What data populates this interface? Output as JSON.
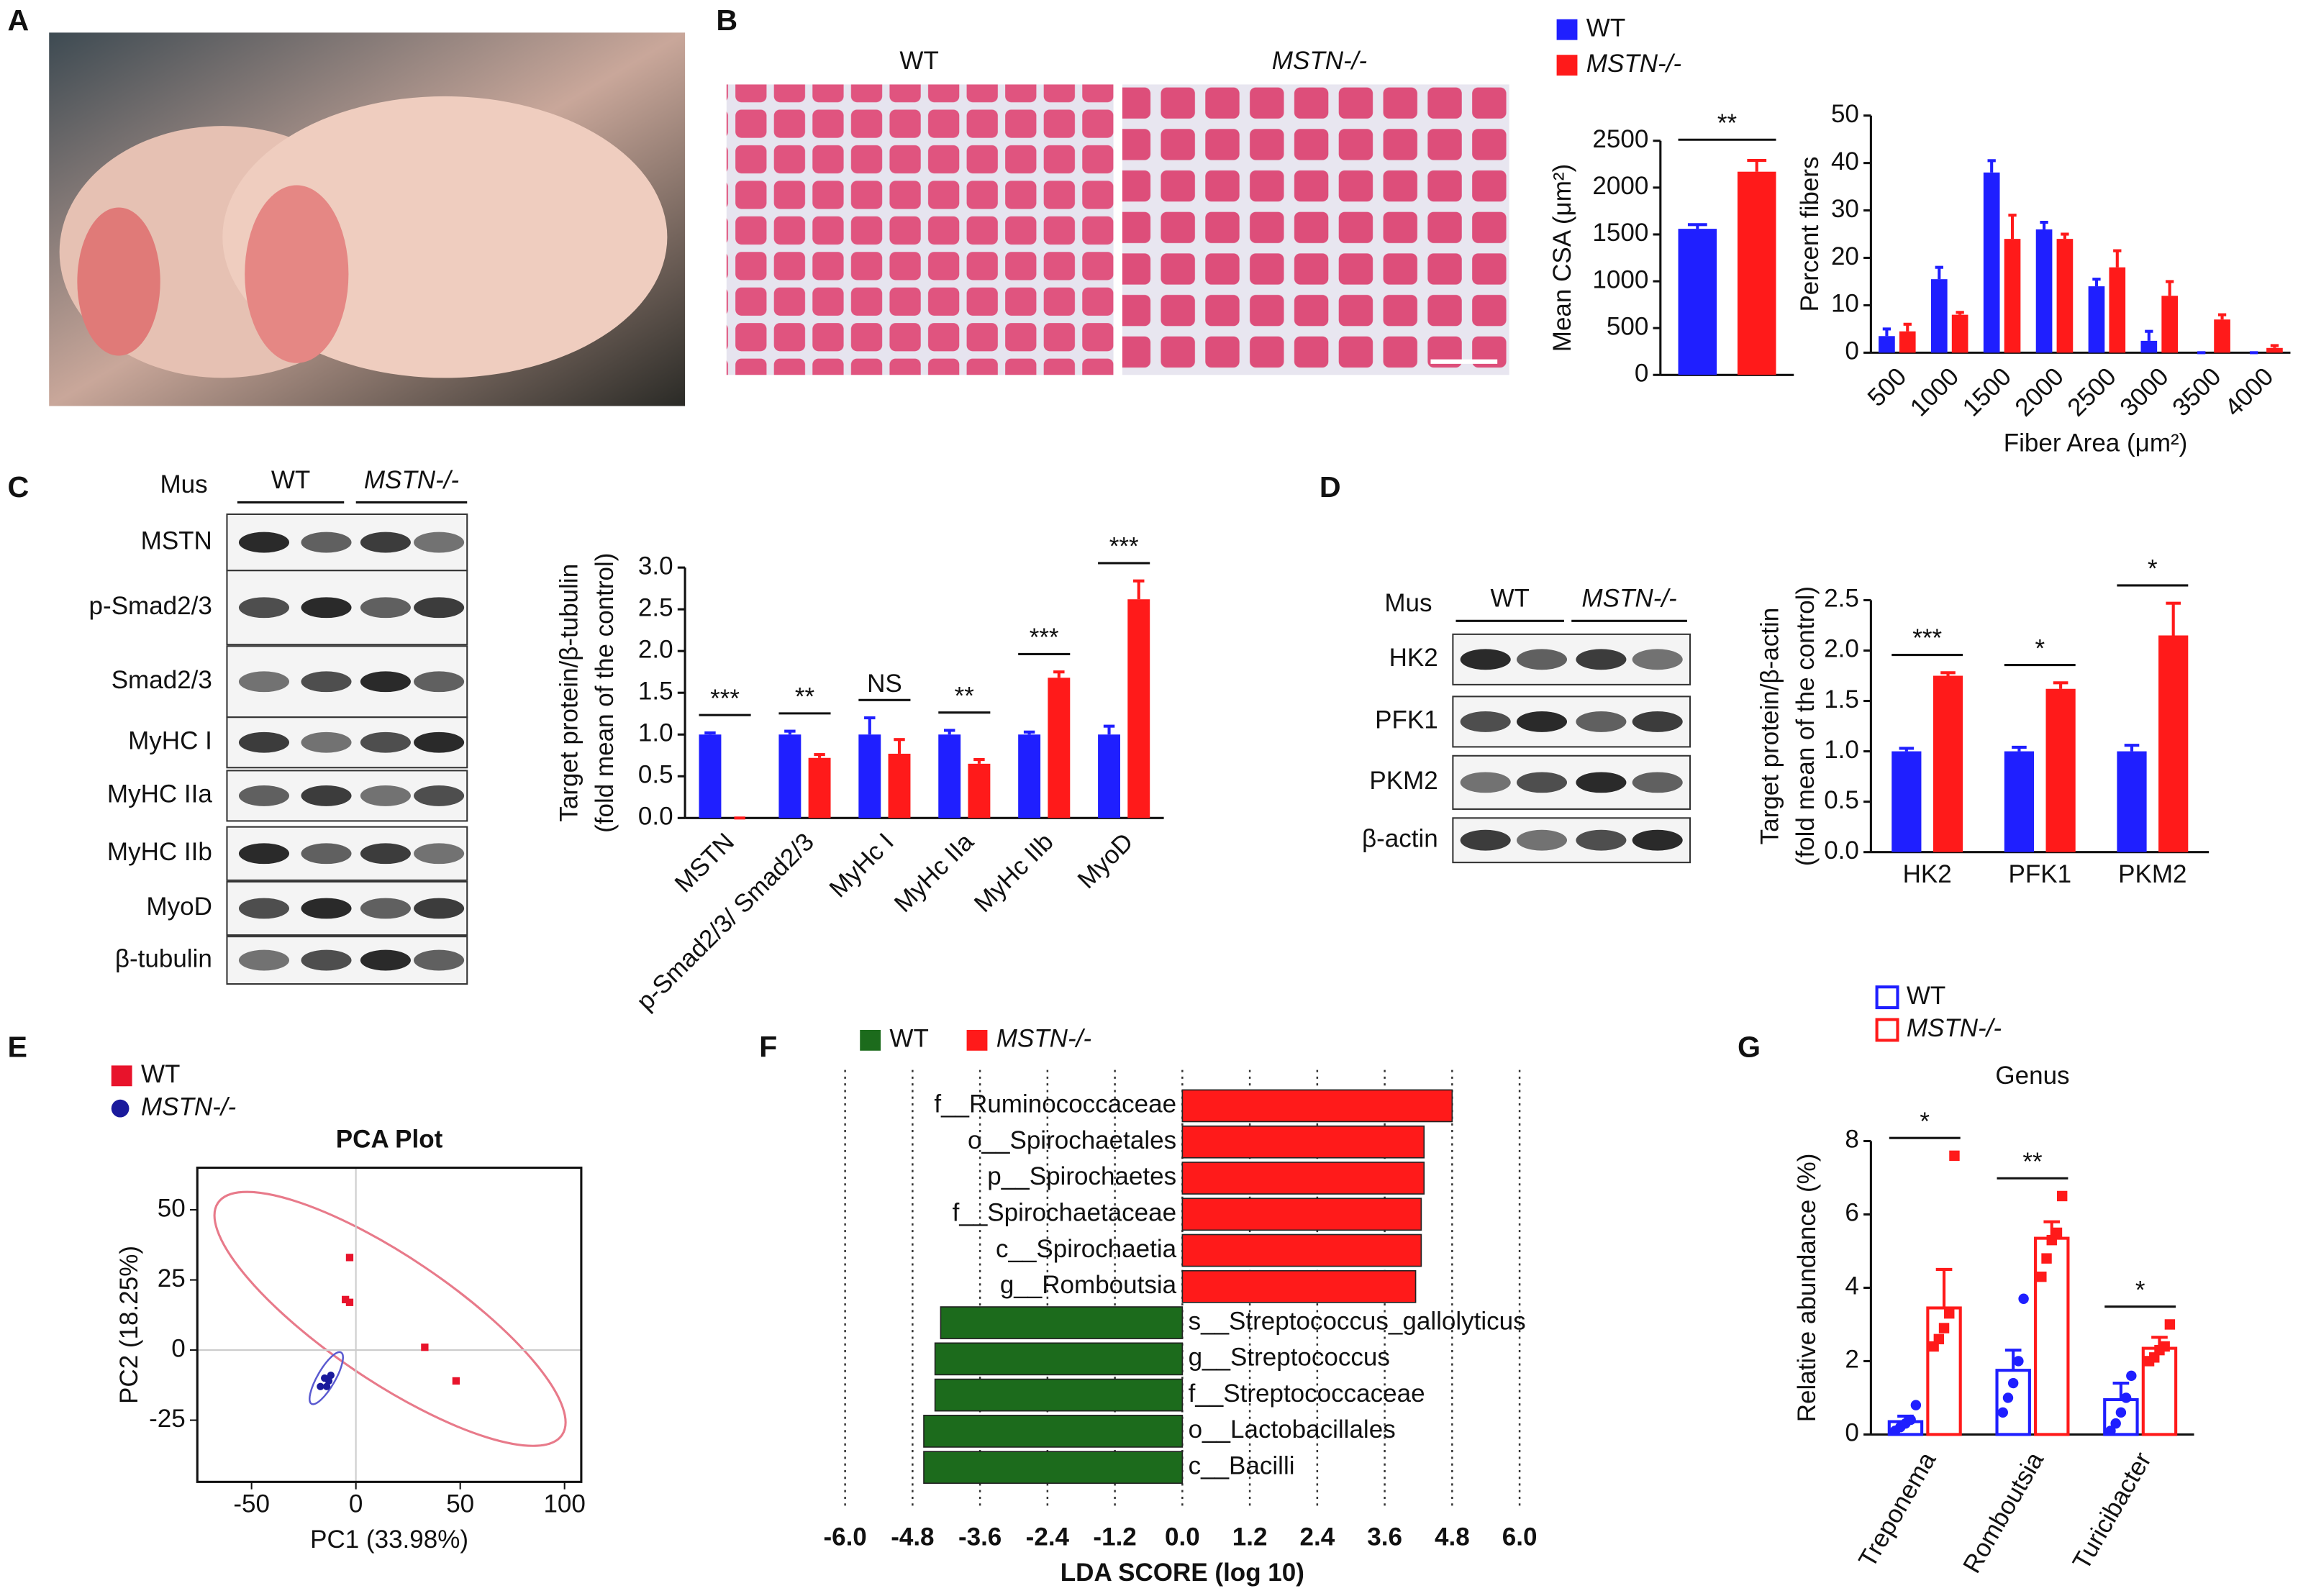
{
  "panel_labels": [
    "A",
    "B",
    "C",
    "D",
    "E",
    "F",
    "G"
  ],
  "histology": {
    "titles": [
      "WT",
      "MSTN-/-"
    ]
  },
  "blot_c": {
    "header": "Mus",
    "groups": [
      "WT",
      "MSTN-/-"
    ],
    "rows": [
      "MSTN",
      "p-Smad2/3",
      "Smad2/3",
      "MyHC I",
      "MyHC IIa",
      "MyHC IIb",
      "MyoD",
      "β-tubulin"
    ]
  },
  "blot_d": {
    "header": "Mus",
    "groups": [
      "WT",
      "MSTN-/-"
    ],
    "rows": [
      "HK2",
      "PFK1",
      "PKM2",
      "β-actin"
    ]
  },
  "chart_data": [
    {
      "type": "bar",
      "ylabel": "Mean CSA (μm²)",
      "legend": "above",
      "categories": [
        null
      ],
      "series": [
        {
          "name": "WT",
          "color": "#1f1fff",
          "values": [
            1560
          ],
          "errors": [
            45
          ]
        },
        {
          "name": "MSTN-/-",
          "color": "#ff1a1a",
          "values": [
            2170
          ],
          "errors": [
            120
          ]
        }
      ],
      "significance": [
        "**"
      ],
      "ylim": [
        0,
        2500
      ],
      "yticks": [
        0,
        500,
        1000,
        1500,
        2000,
        2500
      ]
    },
    {
      "type": "bar",
      "ylabel": "Percent fibers",
      "xlabel": "Fiber Area (μm²)",
      "categories": [
        "500",
        "1000",
        "1500",
        "2000",
        "2500",
        "3000",
        "3500",
        "4000"
      ],
      "series": [
        {
          "name": "WT",
          "color": "#1f1fff",
          "values": [
            3.5,
            15.5,
            38,
            26,
            14,
            2.5,
            0,
            0
          ],
          "errors": [
            1.5,
            2.5,
            2.5,
            1.5,
            1.5,
            2,
            0,
            0
          ]
        },
        {
          "name": "MSTN-/-",
          "color": "#ff1a1a",
          "values": [
            4.5,
            8,
            24,
            24,
            18,
            12,
            7,
            1
          ],
          "errors": [
            1.5,
            0.5,
            5,
            1,
            3.5,
            3,
            1,
            0.5
          ]
        }
      ],
      "ylim": [
        0,
        50
      ],
      "yticks": [
        0,
        10,
        20,
        30,
        40,
        50
      ]
    },
    {
      "type": "bar",
      "ylabel": [
        "Target protein/β-tubulin",
        "(fold mean of the control)"
      ],
      "categories": [
        "MSTN",
        "p-Smad2/3/ Smad2/3",
        "MyHc I",
        "MyHc IIa",
        "MyHc IIb",
        "MyoD"
      ],
      "series": [
        {
          "name": "WT",
          "color": "#1f1fff",
          "values": [
            1,
            1,
            1,
            1,
            1,
            1
          ],
          "errors": [
            0.02,
            0.04,
            0.2,
            0.05,
            0.03,
            0.1
          ]
        },
        {
          "name": "MSTN-/-",
          "color": "#ff1a1a",
          "values": [
            0,
            0.72,
            0.77,
            0.65,
            1.68,
            2.62
          ],
          "errors": [
            0,
            0.04,
            0.17,
            0.05,
            0.07,
            0.22
          ]
        }
      ],
      "significance": [
        "***",
        "**",
        "NS",
        "**",
        "***",
        "***"
      ],
      "ylim": [
        0,
        3
      ],
      "yticks": [
        {
          "value": 0,
          "label": "0.0"
        },
        {
          "value": 0.5,
          "label": "0.5"
        },
        {
          "value": 1,
          "label": "1.0"
        },
        {
          "value": 1.5,
          "label": "1.5"
        },
        {
          "value": 2,
          "label": "2.0"
        },
        {
          "value": 2.5,
          "label": "2.5"
        },
        {
          "value": 3,
          "label": "3.0"
        }
      ]
    },
    {
      "type": "bar",
      "ylabel": [
        "Target protein/β-actin",
        "(fold mean of the control)"
      ],
      "categories": [
        "HK2",
        "PFK1",
        "PKM2"
      ],
      "series": [
        {
          "name": "WT",
          "color": "#1f1fff",
          "values": [
            1,
            1,
            1
          ],
          "errors": [
            0.03,
            0.04,
            0.06
          ]
        },
        {
          "name": "MSTN-/-",
          "color": "#ff1a1a",
          "values": [
            1.75,
            1.62,
            2.15
          ],
          "errors": [
            0.03,
            0.06,
            0.32
          ]
        }
      ],
      "significance": [
        "***",
        "*",
        "*"
      ],
      "ylim": [
        0,
        2.5
      ],
      "yticks": [
        {
          "value": 0,
          "label": "0.0"
        },
        {
          "value": 0.5,
          "label": "0.5"
        },
        {
          "value": 1,
          "label": "1.0"
        },
        {
          "value": 1.5,
          "label": "1.5"
        },
        {
          "value": 2,
          "label": "2.0"
        },
        {
          "value": 2.5,
          "label": "2.5"
        }
      ]
    },
    {
      "type": "scatter",
      "title": "PCA Plot",
      "xlabel": "PC1 (33.98%)",
      "ylabel": "PC2 (18.25%)",
      "legend": "upper left",
      "series": [
        {
          "name": "WT",
          "color": "#e8132b",
          "marker": "square",
          "x": [
            -3,
            -5,
            -3,
            33,
            48
          ],
          "y": [
            33,
            18,
            17,
            1,
            -11
          ]
        },
        {
          "name": "MSTN-/-",
          "color": "#1a1a9c",
          "marker": "circle",
          "x": [
            -15,
            -13,
            -12,
            -17,
            -14
          ],
          "y": [
            -10,
            -11,
            -9,
            -13,
            -13
          ]
        }
      ],
      "xlim": [
        -76,
        108
      ],
      "ylim": [
        -47,
        65
      ],
      "xticks": [
        -50,
        0,
        50,
        100
      ],
      "yticks": [
        -25,
        0,
        25,
        50
      ]
    },
    {
      "type": "barh",
      "xlabel": "LDA SCORE (log 10)",
      "legend": "above",
      "grid": true,
      "categories": [
        "f__Ruminococcaceae",
        "o__Spirochaetales",
        "p__Spirochaetes",
        "f__Spirochaetaceae",
        "c__Spirochaetia",
        "g__Romboutsia",
        "s__Streptococcus_gallolyticus",
        "g__Streptococcus",
        "f__Streptococcaceae",
        "o__Lactobacillales",
        "c__Bacilli"
      ],
      "series": [
        {
          "name": "WT",
          "color": "#1c6b1c",
          "values": [
            null,
            null,
            null,
            null,
            null,
            null,
            -4.3,
            -4.4,
            -4.4,
            -4.6,
            -4.6
          ]
        },
        {
          "name": "MSTN-/-",
          "color": "#ff1a1a",
          "values": [
            4.8,
            4.3,
            4.3,
            4.25,
            4.25,
            4.15,
            null,
            null,
            null,
            null,
            null
          ]
        }
      ],
      "xlim": [
        -6,
        6
      ],
      "xticks": [
        {
          "value": -6,
          "label": "-6.0"
        },
        {
          "value": -4.8,
          "label": "-4.8"
        },
        {
          "value": -3.6,
          "label": "-3.6"
        },
        {
          "value": -2.4,
          "label": "-2.4"
        },
        {
          "value": -1.2,
          "label": "-1.2"
        },
        {
          "value": 0,
          "label": "0.0"
        },
        {
          "value": 1.2,
          "label": "1.2"
        },
        {
          "value": 2.4,
          "label": "2.4"
        },
        {
          "value": 3.6,
          "label": "3.6"
        },
        {
          "value": 4.8,
          "label": "4.8"
        },
        {
          "value": 6,
          "label": "6.0"
        }
      ]
    },
    {
      "type": "bar",
      "title": "Genus",
      "ylabel": "Relative abundance (%)",
      "legend": "above",
      "hollow": true,
      "categories": [
        "Treponema",
        "Romboutsia",
        "Turicibacter"
      ],
      "series": [
        {
          "name": "WT",
          "color": "#1f1fff",
          "marker": "circle",
          "values": [
            0.35,
            1.75,
            0.95
          ],
          "errors": [
            0.15,
            0.55,
            0.45
          ],
          "points": [
            [
              0.1,
              0.2,
              0.3,
              0.4,
              0.8
            ],
            [
              0.6,
              1.0,
              1.4,
              2.0,
              3.7
            ],
            [
              0.1,
              0.3,
              0.6,
              1.0,
              1.6
            ]
          ]
        },
        {
          "name": "MSTN-/-",
          "color": "#ff1a1a",
          "marker": "square",
          "values": [
            3.45,
            5.35,
            2.35
          ],
          "errors": [
            1.05,
            0.45,
            0.3
          ],
          "points": [
            [
              2.4,
              2.6,
              2.9,
              3.3,
              7.6
            ],
            [
              4.3,
              4.8,
              5.3,
              5.5,
              6.5
            ],
            [
              2.0,
              2.1,
              2.3,
              2.4,
              3.0
            ]
          ]
        }
      ],
      "significance": [
        "*",
        "**",
        "*"
      ],
      "ylim": [
        0,
        8
      ],
      "yticks": [
        0,
        2,
        4,
        6,
        8
      ]
    }
  ]
}
